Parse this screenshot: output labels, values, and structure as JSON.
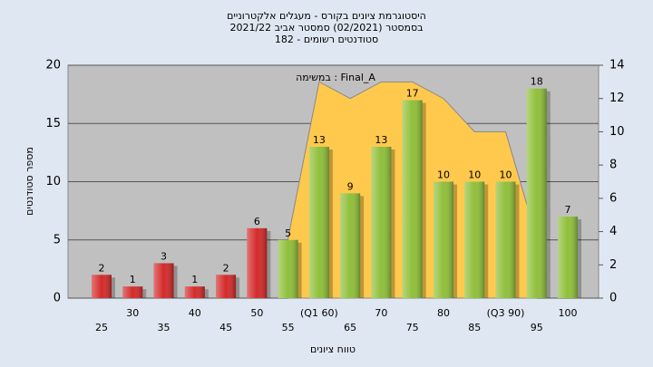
{
  "chart_data": {
    "type": "bar",
    "title": [
      "היסטוגרמת ציונים בקורס - מעגלים אלקטרוניים",
      "בסמסטר  (02/2021)  סמסטר אביב 2021/22",
      "סטודנטים רשומים - 182"
    ],
    "annotation": "במשימה : Final_A",
    "xlabel": "טווח ציונים",
    "ylabel": "מספר סטודנטים",
    "categories": [
      "25",
      "30",
      "35",
      "40",
      "45",
      "50",
      "55",
      "(Q1 60)",
      "65",
      "70",
      "75",
      "80",
      "85",
      "(Q3 90)",
      "95",
      "100"
    ],
    "series": [
      {
        "type": "bar",
        "values": [
          2,
          1,
          3,
          1,
          2,
          6,
          5,
          13,
          9,
          13,
          17,
          10,
          10,
          10,
          18,
          7
        ],
        "colors": [
          "#d42a2a",
          "#d42a2a",
          "#d42a2a",
          "#d42a2a",
          "#d42a2a",
          "#d42a2a",
          "#8fbf3a",
          "#8fbf3a",
          "#8fbf3a",
          "#8fbf3a",
          "#8fbf3a",
          "#8fbf3a",
          "#8fbf3a",
          "#8fbf3a",
          "#8fbf3a",
          "#8fbf3a"
        ]
      },
      {
        "type": "area",
        "axis": "y2",
        "color": "#ffc94d",
        "values": [
          null,
          null,
          null,
          null,
          null,
          null,
          3.6,
          13,
          12,
          13,
          13,
          12,
          10,
          10,
          3.6,
          null
        ]
      }
    ],
    "ylim": [
      0,
      20
    ],
    "yticks": [
      0,
      5,
      10,
      15,
      20
    ],
    "y2lim": [
      0,
      14
    ],
    "y2ticks": [
      0,
      2,
      4,
      6,
      8,
      10,
      12,
      14
    ],
    "grid": true
  }
}
